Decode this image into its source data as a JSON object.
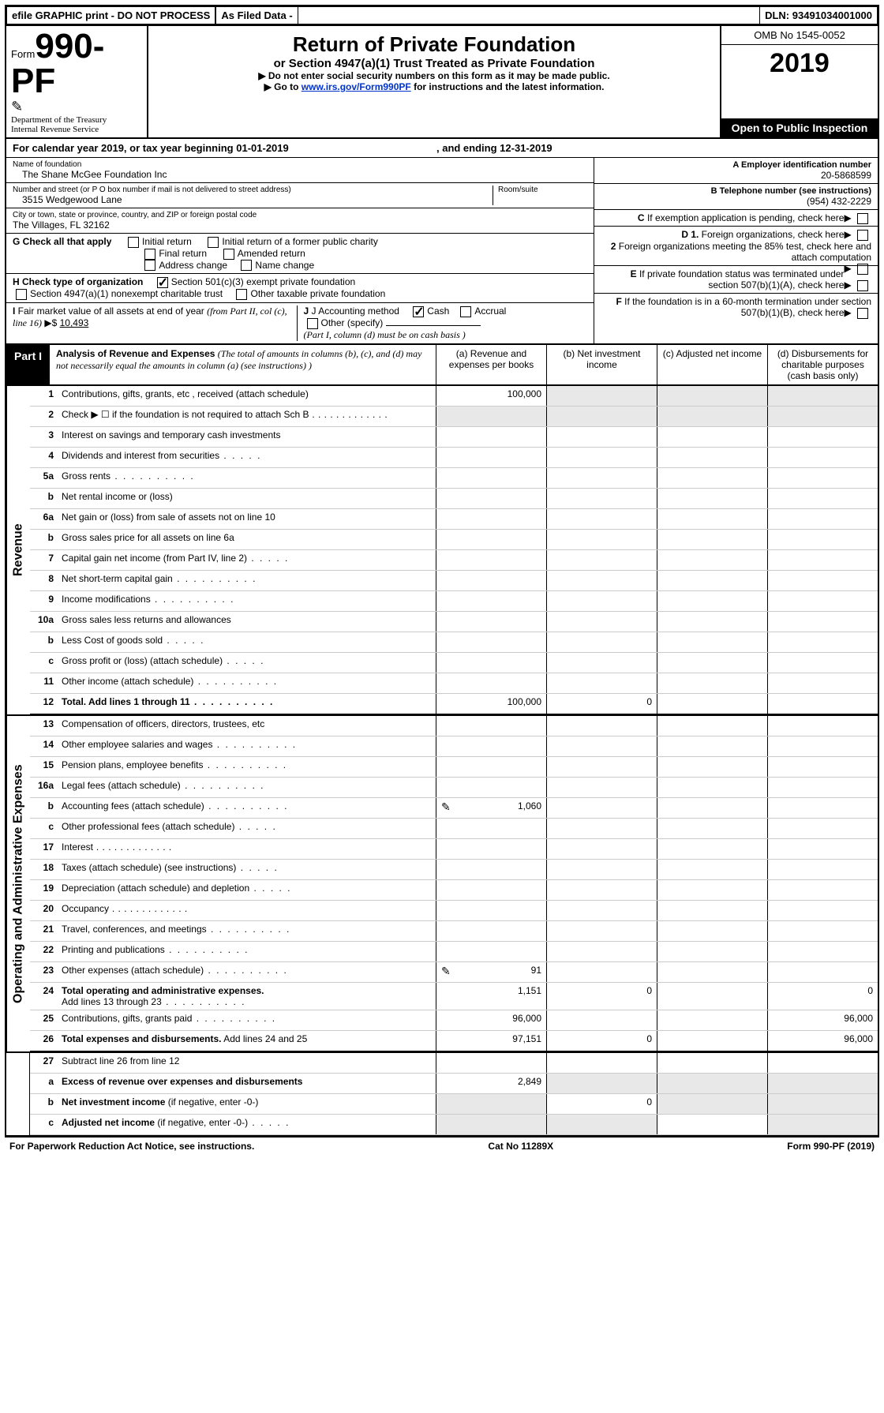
{
  "topstrip": {
    "efile": "efile GRAPHIC print - DO NOT PROCESS",
    "asfiled": "As Filed Data -",
    "dln_label": "DLN:",
    "dln": "93491034001000"
  },
  "masthead": {
    "form_prefix": "Form",
    "form_number": "990-PF",
    "dept1": "Department of the Treasury",
    "dept2": "Internal Revenue Service",
    "title": "Return of Private Foundation",
    "subtitle": "or Section 4947(a)(1) Trust Treated as Private Foundation",
    "instr1": "▶ Do not enter social security numbers on this form as it may be made public.",
    "instr2_pre": "▶ Go to ",
    "instr2_link": "www.irs.gov/Form990PF",
    "instr2_post": " for instructions and the latest information.",
    "omb": "OMB No 1545-0052",
    "year": "2019",
    "inspection": "Open to Public Inspection"
  },
  "calyear": {
    "pre": "For calendar year 2019, or tax year beginning ",
    "begin": "01-01-2019",
    "mid": " , and ending ",
    "end": "12-31-2019"
  },
  "id": {
    "name_label": "Name of foundation",
    "name": "The Shane McGee Foundation Inc",
    "addr_label": "Number and street (or P O  box number if mail is not delivered to street address)",
    "addr": "3515 Wedgewood Lane",
    "room_label": "Room/suite",
    "city_label": "City or town, state or province, country, and ZIP or foreign postal code",
    "city": "The Villages, FL  32162",
    "a_label": "A Employer identification number",
    "a_val": "20-5868599",
    "b_label": "B Telephone number (see instructions)",
    "b_val": "(954) 432-2229",
    "c_label": "C If exemption application is pending, check here",
    "d1": "D 1. Foreign organizations, check here",
    "d2": "2 Foreign organizations meeting the 85% test, check here and attach computation",
    "e": "E  If private foundation status was terminated under section 507(b)(1)(A), check here",
    "f": "F  If the foundation is in a 60-month termination under section 507(b)(1)(B), check here"
  },
  "g": {
    "label": "G Check all that apply",
    "opts": [
      "Initial return",
      "Initial return of a former public charity",
      "Final return",
      "Amended return",
      "Address change",
      "Name change"
    ]
  },
  "h": {
    "label": "H Check type of organization",
    "opt1": "Section 501(c)(3) exempt private foundation",
    "opt2": "Section 4947(a)(1) nonexempt charitable trust",
    "opt3": "Other taxable private foundation"
  },
  "i": {
    "label": "I Fair market value of all assets at end of year (from Part II, col  (c), line 16)",
    "val_prefix": "▶$ ",
    "val": "10,493"
  },
  "j": {
    "label": "J Accounting method",
    "cash": "Cash",
    "accrual": "Accrual",
    "other": "Other (specify)",
    "note": "(Part I, column (d) must be on cash basis )"
  },
  "part1": {
    "label": "Part I",
    "title": "Analysis of Revenue and Expenses",
    "note": " (The total of amounts in columns (b), (c), and (d) may not necessarily equal the amounts in column (a) (see instructions) )",
    "col_a": "(a)   Revenue and expenses per books",
    "col_b": "(b)  Net investment income",
    "col_c": "(c)  Adjusted net income",
    "col_d": "(d)  Disbursements for charitable purposes (cash basis only)"
  },
  "sidelabels": {
    "rev": "Revenue",
    "exp": "Operating and Administrative Expenses"
  },
  "rows": {
    "r1": {
      "n": "1",
      "d": "Contributions, gifts, grants, etc , received (attach schedule)",
      "a": "100,000"
    },
    "r2": {
      "n": "2",
      "d": "Check ▶ ☐ if the foundation is not required to attach Sch B"
    },
    "r3": {
      "n": "3",
      "d": "Interest on savings and temporary cash investments"
    },
    "r4": {
      "n": "4",
      "d": "Dividends and interest from securities"
    },
    "r5a": {
      "n": "5a",
      "d": "Gross rents"
    },
    "r5b": {
      "n": "b",
      "d": "Net rental income or (loss)"
    },
    "r6a": {
      "n": "6a",
      "d": "Net gain or (loss) from sale of assets not on line 10"
    },
    "r6b": {
      "n": "b",
      "d": "Gross sales price for all assets on line 6a"
    },
    "r7": {
      "n": "7",
      "d": "Capital gain net income (from Part IV, line 2)"
    },
    "r8": {
      "n": "8",
      "d": "Net short-term capital gain"
    },
    "r9": {
      "n": "9",
      "d": "Income modifications"
    },
    "r10a": {
      "n": "10a",
      "d": "Gross sales less returns and allowances"
    },
    "r10b": {
      "n": "b",
      "d": "Less  Cost of goods sold"
    },
    "r10c": {
      "n": "c",
      "d": "Gross profit or (loss) (attach schedule)"
    },
    "r11": {
      "n": "11",
      "d": "Other income (attach schedule)"
    },
    "r12": {
      "n": "12",
      "d": "Total. Add lines 1 through 11",
      "a": "100,000",
      "b": "0"
    },
    "r13": {
      "n": "13",
      "d": "Compensation of officers, directors, trustees, etc"
    },
    "r14": {
      "n": "14",
      "d": "Other employee salaries and wages"
    },
    "r15": {
      "n": "15",
      "d": "Pension plans, employee benefits"
    },
    "r16a": {
      "n": "16a",
      "d": "Legal fees (attach schedule)"
    },
    "r16b": {
      "n": "b",
      "d": "Accounting fees (attach schedule)",
      "a": "1,060",
      "pen": true
    },
    "r16c": {
      "n": "c",
      "d": "Other professional fees (attach schedule)"
    },
    "r17": {
      "n": "17",
      "d": "Interest"
    },
    "r18": {
      "n": "18",
      "d": "Taxes (attach schedule) (see instructions)"
    },
    "r19": {
      "n": "19",
      "d": "Depreciation (attach schedule) and depletion"
    },
    "r20": {
      "n": "20",
      "d": "Occupancy"
    },
    "r21": {
      "n": "21",
      "d": "Travel, conferences, and meetings"
    },
    "r22": {
      "n": "22",
      "d": "Printing and publications"
    },
    "r23": {
      "n": "23",
      "d": "Other expenses (attach schedule)",
      "a": "91",
      "pen": true
    },
    "r24": {
      "n": "24",
      "d": "Total operating and administrative expenses. Add lines 13 through 23",
      "a": "1,151",
      "b": "0",
      "dd": "0"
    },
    "r25": {
      "n": "25",
      "d": "Contributions, gifts, grants paid",
      "a": "96,000",
      "dd": "96,000"
    },
    "r26": {
      "n": "26",
      "d": "Total expenses and disbursements. Add lines 24 and 25",
      "a": "97,151",
      "b": "0",
      "dd": "96,000"
    },
    "r27": {
      "n": "27",
      "d": "Subtract line 26 from line 12"
    },
    "r27a": {
      "n": "a",
      "d": "Excess of revenue over expenses and disbursements",
      "a": "2,849"
    },
    "r27b": {
      "n": "b",
      "d": "Net investment income (if negative, enter -0-)",
      "b": "0"
    },
    "r27c": {
      "n": "c",
      "d": "Adjusted net income (if negative, enter -0-)"
    }
  },
  "footer": {
    "left": "For Paperwork Reduction Act Notice, see instructions.",
    "mid": "Cat No  11289X",
    "right": "Form 990-PF (2019)"
  }
}
